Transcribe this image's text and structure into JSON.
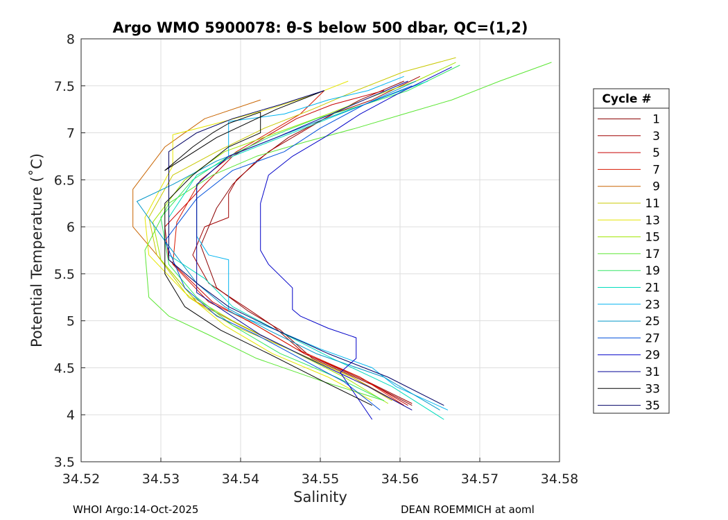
{
  "chart_data": {
    "type": "line",
    "title": "Argo WMO 5900078: θ-S below 500 dbar,  QC=(1,2)",
    "xlabel": "Salinity",
    "ylabel": "Potential Temperature (˚C)",
    "xlim": [
      34.52,
      34.58
    ],
    "ylim": [
      3.5,
      8
    ],
    "x_ticks": [
      "34.52",
      "34.53",
      "34.54",
      "34.55",
      "34.56",
      "34.57",
      "34.58"
    ],
    "y_ticks": [
      "3.5",
      "4",
      "4.5",
      "5",
      "5.5",
      "6",
      "6.5",
      "7",
      "7.5",
      "8"
    ],
    "x_tick_values": [
      34.52,
      34.53,
      34.54,
      34.55,
      34.56,
      34.57,
      34.58
    ],
    "y_tick_values": [
      3.5,
      4,
      4.5,
      5,
      5.5,
      6,
      6.5,
      7,
      7.5,
      8
    ],
    "grid": true,
    "legend_title": "Cycle #",
    "legend_position": "right",
    "series": [
      {
        "name": "1",
        "color": "#8b0000",
        "x": [
          34.5615,
          34.557,
          34.549,
          34.545,
          34.541,
          34.537,
          34.535,
          34.537,
          34.539,
          34.542,
          34.546,
          34.5505,
          34.555,
          34.5605
        ],
        "y": [
          4.1,
          4.3,
          4.6,
          4.9,
          5.1,
          5.35,
          5.8,
          6.2,
          6.45,
          6.7,
          6.95,
          7.15,
          7.35,
          7.55
        ]
      },
      {
        "name": "3",
        "color": "#a00000",
        "x": [
          34.5615,
          34.556,
          34.548,
          34.544,
          34.5405,
          34.536,
          34.534,
          34.5355,
          34.5385,
          34.5385,
          34.5395,
          34.5435,
          34.5475,
          34.5515,
          34.5565,
          34.5625
        ],
        "y": [
          4.12,
          4.35,
          4.65,
          4.95,
          5.15,
          5.4,
          5.7,
          6.0,
          6.1,
          6.35,
          6.5,
          6.8,
          7.0,
          7.2,
          7.35,
          7.6
        ]
      },
      {
        "name": "5",
        "color": "#c80000",
        "x": [
          34.561,
          34.555,
          34.548,
          34.542,
          34.5365,
          34.531,
          34.5305,
          34.5355,
          34.539,
          34.543,
          34.547,
          34.5515,
          34.558
        ],
        "y": [
          4.1,
          4.4,
          4.65,
          4.95,
          5.2,
          5.65,
          6.0,
          6.45,
          6.75,
          6.95,
          7.15,
          7.3,
          7.45
        ]
      },
      {
        "name": "7",
        "color": "#d81800",
        "x": [
          34.5605,
          34.555,
          34.547,
          34.541,
          34.536,
          34.5315,
          34.532,
          34.535,
          34.5395,
          34.5435,
          34.5475,
          34.5505
        ],
        "y": [
          4.1,
          4.4,
          4.7,
          5.0,
          5.2,
          5.6,
          6.05,
          6.5,
          6.8,
          7.0,
          7.2,
          7.45
        ]
      },
      {
        "name": "9",
        "color": "#c86400",
        "x": [
          34.56,
          34.554,
          34.546,
          34.54,
          34.5345,
          34.53,
          34.5265,
          34.5265,
          34.5305,
          34.5355,
          34.5425
        ],
        "y": [
          4.12,
          4.4,
          4.7,
          4.95,
          5.2,
          5.65,
          6.0,
          6.4,
          6.85,
          7.15,
          7.35
        ]
      },
      {
        "name": "11",
        "color": "#c8c800",
        "x": [
          34.559,
          34.554,
          34.546,
          34.539,
          34.5335,
          34.5295,
          34.5285,
          34.5315,
          34.537,
          34.543,
          34.549,
          34.5545,
          34.5605,
          34.567
        ],
        "y": [
          4.15,
          4.4,
          4.7,
          4.95,
          5.25,
          5.7,
          6.1,
          6.55,
          6.8,
          7.05,
          7.25,
          7.45,
          7.65,
          7.8
        ]
      },
      {
        "name": "13",
        "color": "#e6e600",
        "x": [
          34.5565,
          34.551,
          34.544,
          34.538,
          34.533,
          34.5285,
          34.528,
          34.5315,
          34.5315,
          34.537,
          34.5435,
          34.549,
          34.5535
        ],
        "y": [
          4.15,
          4.4,
          4.65,
          4.95,
          5.3,
          5.7,
          6.1,
          6.65,
          6.98,
          7.1,
          7.25,
          7.4,
          7.55
        ]
      },
      {
        "name": "15",
        "color": "#a0e600",
        "x": [
          34.5585,
          34.553,
          34.546,
          34.539,
          34.534,
          34.53,
          34.529,
          34.533,
          34.538,
          34.5445,
          34.551,
          34.557,
          34.562,
          34.567
        ],
        "y": [
          4.12,
          4.4,
          4.7,
          5.0,
          5.25,
          5.65,
          6.05,
          6.5,
          6.8,
          7.0,
          7.2,
          7.4,
          7.55,
          7.75
        ]
      },
      {
        "name": "17",
        "color": "#5ae632",
        "x": [
          34.558,
          34.5505,
          34.542,
          34.536,
          34.531,
          34.5285,
          34.528,
          34.531,
          34.5365,
          34.542,
          34.548,
          34.5545,
          34.5605,
          34.5665,
          34.5725,
          34.579
        ],
        "y": [
          4.15,
          4.35,
          4.6,
          4.85,
          5.05,
          5.25,
          5.75,
          6.25,
          6.55,
          6.75,
          6.9,
          7.05,
          7.2,
          7.35,
          7.55,
          7.75
        ]
      },
      {
        "name": "19",
        "color": "#32e664",
        "x": [
          34.558,
          34.552,
          34.545,
          34.539,
          34.5345,
          34.531,
          34.53,
          34.534,
          34.5385,
          34.5435,
          34.5495,
          34.5555,
          34.561,
          34.5675
        ],
        "y": [
          4.15,
          4.4,
          4.65,
          4.95,
          5.25,
          5.6,
          6.1,
          6.5,
          6.75,
          6.95,
          7.15,
          7.3,
          7.45,
          7.72
        ]
      },
      {
        "name": "21",
        "color": "#00dcbe",
        "x": [
          34.5655,
          34.559,
          34.5515,
          34.5445,
          34.539,
          34.5355,
          34.531,
          34.531,
          34.5345,
          34.539,
          34.545,
          34.551,
          34.557,
          34.5635
        ],
        "y": [
          3.95,
          4.3,
          4.6,
          4.9,
          5.15,
          5.45,
          5.7,
          6.1,
          6.55,
          6.75,
          6.95,
          7.15,
          7.35,
          7.55
        ]
      },
      {
        "name": "23",
        "color": "#00b4f0",
        "x": [
          34.566,
          34.5595,
          34.5565,
          34.55,
          34.5445,
          34.5385,
          34.5385,
          34.536,
          34.5345,
          34.5345,
          34.5385,
          34.5385,
          34.5455,
          34.551,
          34.556,
          34.5605
        ],
        "y": [
          4.05,
          4.3,
          4.5,
          4.7,
          4.9,
          5.1,
          5.65,
          5.7,
          5.9,
          6.45,
          6.75,
          7.12,
          7.2,
          7.35,
          7.45,
          7.6
        ]
      },
      {
        "name": "25",
        "color": "#0096c8",
        "x": [
          34.565,
          34.558,
          34.5495,
          34.5435,
          34.538,
          34.5345,
          34.5305,
          34.527,
          34.5315,
          34.537,
          34.543,
          34.549,
          34.5555,
          34.562
        ],
        "y": [
          4.05,
          4.4,
          4.65,
          4.9,
          5.15,
          5.4,
          5.85,
          6.27,
          6.45,
          6.7,
          6.9,
          7.1,
          7.3,
          7.55
        ]
      },
      {
        "name": "27",
        "color": "#0050dc",
        "x": [
          34.5575,
          34.553,
          34.5475,
          34.542,
          34.537,
          34.533,
          34.5305,
          34.5345,
          34.539,
          34.5455,
          34.55,
          34.5555,
          34.5615
        ],
        "y": [
          4.05,
          4.35,
          4.6,
          4.85,
          5.05,
          5.35,
          5.85,
          6.3,
          6.6,
          6.8,
          7.05,
          7.3,
          7.5
        ]
      },
      {
        "name": "29",
        "color": "#0000c8",
        "x": [
          34.5565,
          34.5525,
          34.5545,
          34.5545,
          34.551,
          34.5475,
          34.5465,
          34.5465,
          34.5435,
          34.5425,
          34.5425,
          34.5425,
          34.5435,
          34.5465,
          34.5505,
          34.555,
          34.5605,
          34.5665
        ],
        "y": [
          3.95,
          4.45,
          4.6,
          4.82,
          4.92,
          5.05,
          5.12,
          5.35,
          5.6,
          5.75,
          6.0,
          6.25,
          6.55,
          6.75,
          6.95,
          7.2,
          7.45,
          7.7
        ]
      },
      {
        "name": "31",
        "color": "#000096",
        "x": [
          34.5615,
          34.556,
          34.5485,
          34.5425,
          34.538,
          34.5345,
          34.5345,
          34.5345,
          34.5385,
          34.5445,
          34.55,
          34.5555,
          34.561
        ],
        "y": [
          4.05,
          4.3,
          4.6,
          4.85,
          5.1,
          5.3,
          5.9,
          6.45,
          6.75,
          6.95,
          7.15,
          7.35,
          7.55
        ]
      },
      {
        "name": "33",
        "color": "#000000",
        "x": [
          34.5565,
          34.5505,
          34.5435,
          34.5375,
          34.533,
          34.5305,
          34.5305,
          34.534,
          34.5385,
          34.5425,
          34.5425,
          34.5385,
          34.5365,
          34.534,
          34.5305,
          34.537,
          34.5445,
          34.5505
        ],
        "y": [
          4.1,
          4.35,
          4.65,
          4.9,
          5.15,
          5.5,
          6.25,
          6.55,
          6.85,
          7.0,
          7.22,
          7.1,
          7.0,
          6.85,
          6.6,
          6.95,
          7.25,
          7.45
        ]
      },
      {
        "name": "35",
        "color": "#000064",
        "x": [
          34.5655,
          34.5585,
          34.551,
          34.5445,
          34.5385,
          34.5345,
          34.531,
          34.531,
          34.531,
          34.5345,
          34.539,
          34.545,
          34.5505
        ],
        "y": [
          4.1,
          4.4,
          4.65,
          4.9,
          5.15,
          5.4,
          5.65,
          6.25,
          6.8,
          7.0,
          7.15,
          7.3,
          7.45
        ]
      }
    ]
  },
  "footer": {
    "left": "WHOI Argo:14-Oct-2025",
    "right": "DEAN ROEMMICH at aoml"
  }
}
